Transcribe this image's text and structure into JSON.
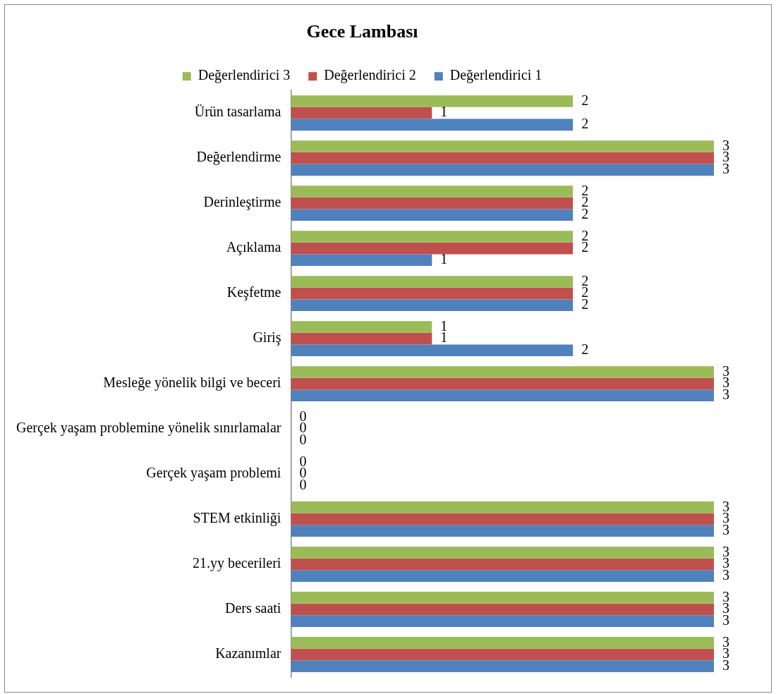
{
  "chart_data": {
    "type": "bar",
    "title": "Gece Lambası",
    "orientation": "horizontal",
    "categories": [
      "Ürün tasarlama",
      "Değerlendirme",
      "Derinleştirme",
      "Açıklama",
      "Keşfetme",
      "Giriş",
      "Mesleğe yönelik bilgi ve beceri",
      "Gerçek yaşam problemine yönelik sınırlamalar",
      "Gerçek yaşam problemi",
      "STEM etkinliği",
      "21.yy becerileri",
      "Ders saati",
      "Kazanımlar"
    ],
    "series": [
      {
        "name": "Değerlendirici 3",
        "color": "#9bbb59",
        "values": [
          2,
          3,
          2,
          2,
          2,
          1,
          3,
          0,
          0,
          3,
          3,
          3,
          3
        ]
      },
      {
        "name": "Değerlendirici 2",
        "color": "#c0504d",
        "values": [
          1,
          3,
          2,
          2,
          2,
          1,
          3,
          0,
          0,
          3,
          3,
          3,
          3
        ]
      },
      {
        "name": "Değerlendirici 1",
        "color": "#4f81bd",
        "values": [
          2,
          3,
          2,
          1,
          2,
          2,
          3,
          0,
          0,
          3,
          3,
          3,
          3
        ]
      }
    ],
    "xlim": [
      0,
      3
    ],
    "tick_labels": "y",
    "grid": false,
    "legend": "top",
    "data_labels": true
  }
}
